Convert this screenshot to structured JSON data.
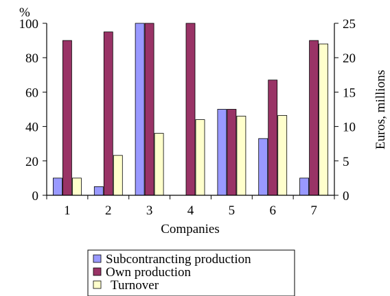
{
  "chart_data": {
    "type": "bar",
    "categories": [
      "1",
      "2",
      "3",
      "4",
      "5",
      "6",
      "7"
    ],
    "xlabel": "Companies",
    "ylabel_left": "%",
    "ylabel_right": "Euros, millions",
    "ylim_left": [
      0,
      100
    ],
    "ylim_right": [
      0,
      25
    ],
    "yticks_left": [
      0,
      20,
      40,
      60,
      80,
      100
    ],
    "yticks_right": [
      0,
      5,
      10,
      15,
      20,
      25
    ],
    "grid": false,
    "legend_position": "bottom",
    "series": [
      {
        "name": "Subcontrancting production",
        "axis": "left",
        "color": "#9999ff",
        "values": [
          10,
          5,
          100,
          0,
          50,
          33,
          10
        ]
      },
      {
        "name": "Own production",
        "axis": "left",
        "color": "#993366",
        "values": [
          90,
          95,
          100,
          100,
          50,
          67,
          90
        ]
      },
      {
        "name": "Turnover",
        "axis": "right",
        "color": "#ffffcc",
        "values": [
          2.5,
          5.8,
          9,
          11,
          11.5,
          11.6,
          22
        ]
      }
    ]
  }
}
